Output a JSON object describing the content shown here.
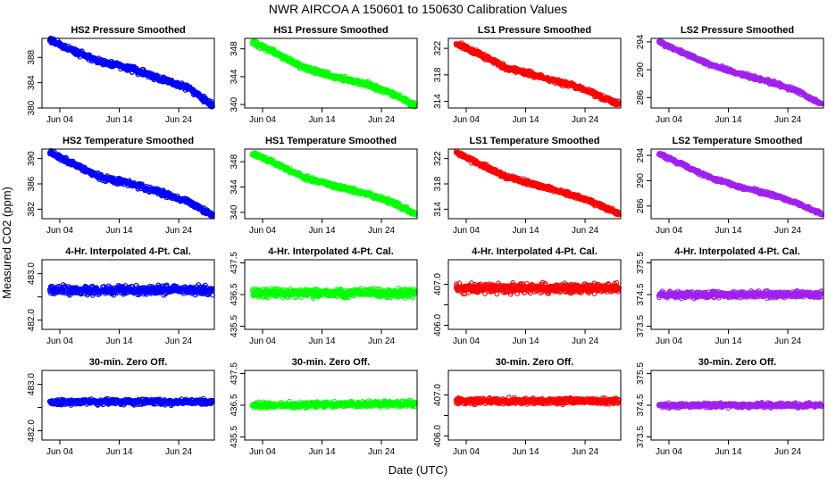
{
  "figure": {
    "title": "NWR   AIRCOA A   150601 to 150630   Calibration Values",
    "xlabel": "Date (UTC)",
    "ylabel": "Measured CO2 (ppm)"
  },
  "colors": {
    "HS2": "#0000ff",
    "HS1": "#00ff00",
    "LS1": "#ff0000",
    "LS2": "#a020f0"
  },
  "chart_data": [
    {
      "type": "scatter",
      "title": "HS2 Pressure Smoothed",
      "series": "HS2",
      "xlim": [
        1,
        30
      ],
      "ylim": [
        380,
        391
      ],
      "y_ticks": [
        380,
        384,
        388
      ],
      "x_ticks": [
        4,
        14,
        24
      ],
      "x_tick_labels": [
        "Jun 04",
        "Jun 14",
        "Jun 24"
      ],
      "x_range": [
        2.3,
        29.7
      ],
      "y_trend": [
        [
          2.3,
          390.8
        ],
        [
          8,
          388.3
        ],
        [
          11,
          387.3
        ],
        [
          16,
          386.2
        ],
        [
          22,
          384.3
        ],
        [
          26,
          383.0
        ],
        [
          29.7,
          380.3
        ]
      ],
      "y_noise": 0.3
    },
    {
      "type": "scatter",
      "title": "HS1 Pressure Smoothed",
      "series": "HS1",
      "xlim": [
        1,
        30
      ],
      "ylim": [
        339.5,
        349.5
      ],
      "y_ticks": [
        340,
        344,
        348
      ],
      "x_ticks": [
        4,
        14,
        24
      ],
      "x_tick_labels": [
        "Jun 04",
        "Jun 14",
        "Jun 24"
      ],
      "x_range": [
        2.3,
        29.7
      ],
      "y_trend": [
        [
          2.3,
          349.0
        ],
        [
          6,
          347.5
        ],
        [
          11,
          345.3
        ],
        [
          16,
          344.0
        ],
        [
          22,
          342.8
        ],
        [
          26,
          341.5
        ],
        [
          29.7,
          339.8
        ]
      ],
      "y_noise": 0.25
    },
    {
      "type": "scatter",
      "title": "LS1 Pressure Smoothed",
      "series": "LS1",
      "xlim": [
        1,
        30
      ],
      "ylim": [
        313,
        323.5
      ],
      "y_ticks": [
        314,
        318,
        322
      ],
      "x_ticks": [
        4,
        14,
        24
      ],
      "x_tick_labels": [
        "Jun 04",
        "Jun 14",
        "Jun 24"
      ],
      "x_range": [
        2.3,
        29.7
      ],
      "y_trend": [
        [
          2.3,
          322.8
        ],
        [
          7,
          320.8
        ],
        [
          11,
          319.0
        ],
        [
          16,
          317.8
        ],
        [
          22,
          316.4
        ],
        [
          26,
          315.0
        ],
        [
          29.7,
          313.5
        ]
      ],
      "y_noise": 0.25
    },
    {
      "type": "scatter",
      "title": "LS2 Pressure Smoothed",
      "series": "LS2",
      "xlim": [
        1,
        30
      ],
      "ylim": [
        284.5,
        294.5
      ],
      "y_ticks": [
        286,
        290,
        294
      ],
      "x_ticks": [
        4,
        14,
        24
      ],
      "x_tick_labels": [
        "Jun 04",
        "Jun 14",
        "Jun 24"
      ],
      "x_range": [
        2.3,
        29.7
      ],
      "y_trend": [
        [
          2.3,
          294.0
        ],
        [
          7,
          292.2
        ],
        [
          11,
          290.7
        ],
        [
          16,
          289.4
        ],
        [
          22,
          288.0
        ],
        [
          26,
          286.8
        ],
        [
          29.7,
          285.0
        ]
      ],
      "y_noise": 0.2
    },
    {
      "type": "scatter",
      "title": "HS2 Temperature Smoothed",
      "series": "HS2",
      "xlim": [
        1,
        30
      ],
      "ylim": [
        380.5,
        391.5
      ],
      "y_ticks": [
        382,
        386,
        390
      ],
      "x_ticks": [
        4,
        14,
        24
      ],
      "x_tick_labels": [
        "Jun 04",
        "Jun 14",
        "Jun 24"
      ],
      "x_range": [
        2.3,
        29.7
      ],
      "y_trend": [
        [
          2.3,
          391.0
        ],
        [
          8,
          388.3
        ],
        [
          11,
          387.0
        ],
        [
          16,
          386.0
        ],
        [
          22,
          384.3
        ],
        [
          26,
          383.0
        ],
        [
          29.7,
          381.0
        ]
      ],
      "y_noise": 0.3
    },
    {
      "type": "scatter",
      "title": "HS1 Temperature Smoothed",
      "series": "HS1",
      "xlim": [
        1,
        30
      ],
      "ylim": [
        339,
        350
      ],
      "y_ticks": [
        340,
        344,
        348
      ],
      "x_ticks": [
        4,
        14,
        24
      ],
      "x_tick_labels": [
        "Jun 04",
        "Jun 14",
        "Jun 24"
      ],
      "x_range": [
        2.3,
        29.7
      ],
      "y_trend": [
        [
          2.3,
          349.3
        ],
        [
          6,
          347.8
        ],
        [
          11,
          345.5
        ],
        [
          16,
          344.2
        ],
        [
          22,
          342.8
        ],
        [
          26,
          341.5
        ],
        [
          29.7,
          339.8
        ]
      ],
      "y_noise": 0.25
    },
    {
      "type": "scatter",
      "title": "LS1 Temperature Smoothed",
      "series": "LS1",
      "xlim": [
        1,
        30
      ],
      "ylim": [
        312.5,
        323.5
      ],
      "y_ticks": [
        314,
        318,
        322
      ],
      "x_ticks": [
        4,
        14,
        24
      ],
      "x_tick_labels": [
        "Jun 04",
        "Jun 14",
        "Jun 24"
      ],
      "x_range": [
        2.3,
        29.7
      ],
      "y_trend": [
        [
          2.3,
          323.0
        ],
        [
          7,
          320.8
        ],
        [
          11,
          319.0
        ],
        [
          16,
          317.8
        ],
        [
          22,
          316.2
        ],
        [
          26,
          314.8
        ],
        [
          29.7,
          313.3
        ]
      ],
      "y_noise": 0.25
    },
    {
      "type": "scatter",
      "title": "LS2 Temperature Smoothed",
      "series": "LS2",
      "xlim": [
        1,
        30
      ],
      "ylim": [
        284,
        295
      ],
      "y_ticks": [
        286,
        290,
        294
      ],
      "x_ticks": [
        4,
        14,
        24
      ],
      "x_tick_labels": [
        "Jun 04",
        "Jun 14",
        "Jun 24"
      ],
      "x_range": [
        2.3,
        29.7
      ],
      "y_trend": [
        [
          2.3,
          294.3
        ],
        [
          7,
          292.2
        ],
        [
          11,
          290.5
        ],
        [
          16,
          289.0
        ],
        [
          22,
          287.6
        ],
        [
          26,
          286.3
        ],
        [
          29.7,
          284.7
        ]
      ],
      "y_noise": 0.2
    },
    {
      "type": "scatter",
      "title": "4-Hr. Interpolated 4-Pt. Cal.",
      "series": "HS2",
      "xlim": [
        1,
        30
      ],
      "ylim": [
        481.8,
        483.3
      ],
      "y_ticks": [
        482.0,
        482.5,
        483.0
      ],
      "y_tick_labels": [
        "482.0",
        "",
        "483.0"
      ],
      "x_ticks": [
        4,
        14,
        24
      ],
      "x_tick_labels": [
        "Jun 04",
        "Jun 14",
        "Jun 24"
      ],
      "x_range": [
        2.3,
        29.7
      ],
      "y_trend": [
        [
          2.3,
          482.65
        ],
        [
          29.7,
          482.65
        ]
      ],
      "y_noise": 0.07
    },
    {
      "type": "scatter",
      "title": "4-Hr. Interpolated 4-Pt. Cal.",
      "series": "HS1",
      "xlim": [
        1,
        30
      ],
      "ylim": [
        435.4,
        437.6
      ],
      "y_ticks": [
        435.5,
        436.5,
        437.5
      ],
      "y_tick_labels": [
        "435.5",
        "436.5",
        "437.5"
      ],
      "x_ticks": [
        4,
        14,
        24
      ],
      "x_tick_labels": [
        "Jun 04",
        "Jun 14",
        "Jun 24"
      ],
      "x_range": [
        2.3,
        29.7
      ],
      "y_trend": [
        [
          2.3,
          436.55
        ],
        [
          29.7,
          436.55
        ]
      ],
      "y_noise": 0.09
    },
    {
      "type": "scatter",
      "title": "4-Hr. Interpolated 4-Pt. Cal.",
      "series": "LS1",
      "xlim": [
        1,
        30
      ],
      "ylim": [
        405.9,
        407.6
      ],
      "y_ticks": [
        406.0,
        406.5,
        407.0
      ],
      "y_tick_labels": [
        "406.0",
        "",
        "407.0"
      ],
      "x_ticks": [
        4,
        14,
        24
      ],
      "x_tick_labels": [
        "Jun 04",
        "Jun 14",
        "Jun 24"
      ],
      "x_range": [
        2.3,
        29.7
      ],
      "y_trend": [
        [
          2.3,
          406.9
        ],
        [
          29.7,
          406.9
        ]
      ],
      "y_noise": 0.08
    },
    {
      "type": "scatter",
      "title": "4-Hr. Interpolated 4-Pt. Cal.",
      "series": "LS2",
      "xlim": [
        1,
        30
      ],
      "ylim": [
        373.4,
        375.6
      ],
      "y_ticks": [
        373.5,
        374.5,
        375.5
      ],
      "y_tick_labels": [
        "373.5",
        "374.5",
        "375.5"
      ],
      "x_ticks": [
        4,
        14,
        24
      ],
      "x_tick_labels": [
        "Jun 04",
        "Jun 14",
        "Jun 24"
      ],
      "x_range": [
        2.3,
        29.7
      ],
      "y_trend": [
        [
          2.3,
          374.5
        ],
        [
          29.7,
          374.5
        ]
      ],
      "y_noise": 0.07
    },
    {
      "type": "scatter",
      "title": "30-min. Zero Off.",
      "series": "HS2",
      "xlim": [
        1,
        30
      ],
      "ylim": [
        481.8,
        483.3
      ],
      "y_ticks": [
        482.0,
        482.5,
        483.0
      ],
      "y_tick_labels": [
        "482.0",
        "",
        "483.0"
      ],
      "x_ticks": [
        4,
        14,
        24
      ],
      "x_tick_labels": [
        "Jun 04",
        "Jun 14",
        "Jun 24"
      ],
      "x_range": [
        2.3,
        29.7
      ],
      "y_trend": [
        [
          2.3,
          482.62
        ],
        [
          29.7,
          482.62
        ]
      ],
      "y_noise": 0.04
    },
    {
      "type": "scatter",
      "title": "30-min. Zero Off.",
      "series": "HS1",
      "xlim": [
        1,
        30
      ],
      "ylim": [
        435.4,
        437.6
      ],
      "y_ticks": [
        435.5,
        436.5,
        437.5
      ],
      "y_tick_labels": [
        "435.5",
        "436.5",
        "437.5"
      ],
      "x_ticks": [
        4,
        14,
        24
      ],
      "x_tick_labels": [
        "Jun 04",
        "Jun 14",
        "Jun 24"
      ],
      "x_range": [
        2.3,
        29.7
      ],
      "y_trend": [
        [
          2.3,
          436.5
        ],
        [
          29.7,
          436.55
        ]
      ],
      "y_noise": 0.06
    },
    {
      "type": "scatter",
      "title": "30-min. Zero Off.",
      "series": "LS1",
      "xlim": [
        1,
        30
      ],
      "ylim": [
        405.9,
        407.6
      ],
      "y_ticks": [
        406.0,
        406.5,
        407.0
      ],
      "y_tick_labels": [
        "406.0",
        "",
        "407.0"
      ],
      "x_ticks": [
        4,
        14,
        24
      ],
      "x_tick_labels": [
        "Jun 04",
        "Jun 14",
        "Jun 24"
      ],
      "x_range": [
        2.3,
        29.7
      ],
      "y_trend": [
        [
          2.3,
          406.85
        ],
        [
          29.7,
          406.85
        ]
      ],
      "y_noise": 0.05
    },
    {
      "type": "scatter",
      "title": "30-min. Zero Off.",
      "series": "LS2",
      "xlim": [
        1,
        30
      ],
      "ylim": [
        373.4,
        375.6
      ],
      "y_ticks": [
        373.5,
        374.5,
        375.5
      ],
      "y_tick_labels": [
        "373.5",
        "374.5",
        "375.5"
      ],
      "x_ticks": [
        4,
        14,
        24
      ],
      "x_tick_labels": [
        "Jun 04",
        "Jun 14",
        "Jun 24"
      ],
      "x_range": [
        2.3,
        29.7
      ],
      "y_trend": [
        [
          2.3,
          374.5
        ],
        [
          29.7,
          374.5
        ]
      ],
      "y_noise": 0.05
    }
  ]
}
